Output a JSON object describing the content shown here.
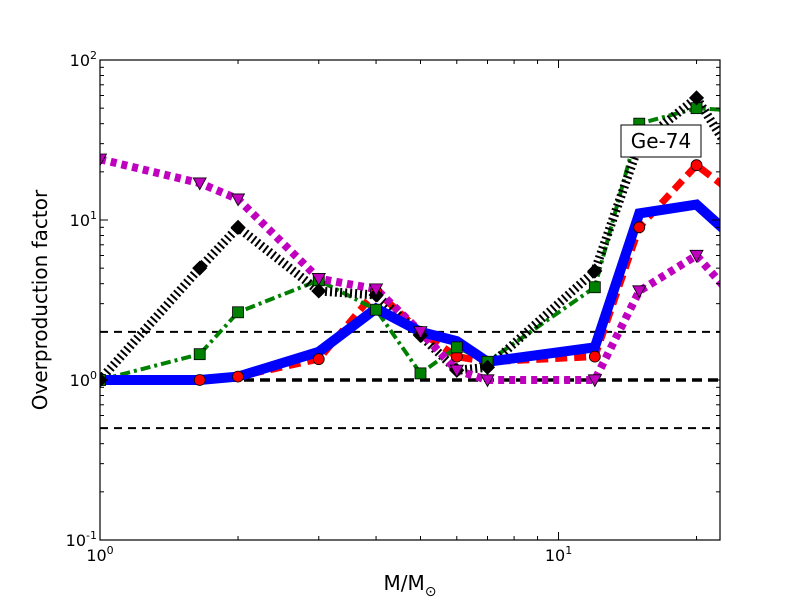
{
  "chart_data": {
    "type": "line",
    "xscale": "log",
    "yscale": "log",
    "xlim": [
      1,
      22.5
    ],
    "ylim": [
      0.1,
      100
    ],
    "xlabel": "M/M",
    "xlabel_sub": "⊙",
    "ylabel": "Overproduction factor",
    "x_ticks": [
      {
        "value": 1,
        "base": "10",
        "exp": "0"
      },
      {
        "value": 10,
        "base": "10",
        "exp": "1"
      }
    ],
    "y_ticks": [
      {
        "value": 0.1,
        "base": "10",
        "exp": "-1"
      },
      {
        "value": 1,
        "base": "10",
        "exp": "0"
      },
      {
        "value": 10,
        "base": "10",
        "exp": "1"
      },
      {
        "value": 100,
        "base": "10",
        "exp": "2"
      }
    ],
    "annotation": "Ge-74",
    "reference_lines": [
      {
        "y": 2.0,
        "style": "thin-dashed"
      },
      {
        "y": 1.0,
        "style": "thick-dashed"
      },
      {
        "y": 0.5,
        "style": "thin-dashed"
      }
    ],
    "series": [
      {
        "x": [
          1.0,
          1.65,
          2.0,
          3.0,
          4.0,
          5.0,
          6.0,
          7.0,
          12.0,
          15.0,
          20.0,
          25.0
        ],
        "y": [
          1.0,
          1.0,
          1.05,
          1.35,
          3.6,
          2.0,
          1.4,
          1.3,
          1.4,
          9.0,
          22.0,
          13.5
        ],
        "color": "#ff0000",
        "marker": "circle",
        "dash": "12,7",
        "width": 7
      },
      {
        "x": [
          1.0,
          1.65,
          2.0,
          3.0,
          4.0,
          5.0,
          6.0,
          7.0,
          12.0,
          15.0,
          20.0,
          25.0
        ],
        "y": [
          1.0,
          1.45,
          2.65,
          4.2,
          2.75,
          1.1,
          1.6,
          1.3,
          3.8,
          40.0,
          50.0,
          48.0
        ],
        "color": "#008000",
        "marker": "square",
        "dash": "10,4,3,4",
        "width": 4
      },
      {
        "x": [
          1.0,
          1.65,
          2.0,
          3.0,
          4.0,
          5.0,
          6.0,
          7.0,
          12.0,
          15.0,
          20.0,
          25.0
        ],
        "y": [
          1.0,
          5.0,
          9.0,
          3.6,
          3.4,
          1.9,
          1.15,
          1.2,
          4.8,
          30.0,
          58.0,
          21.0
        ],
        "color": "#000000",
        "marker": "diamond",
        "dash": "2,3",
        "width": 9
      },
      {
        "x": [
          1.0,
          1.65,
          2.0,
          3.0,
          4.0,
          5.0,
          6.0,
          7.0,
          12.0,
          15.0,
          20.0,
          25.0
        ],
        "y": [
          24.0,
          17.0,
          13.5,
          4.3,
          3.7,
          2.0,
          1.15,
          1.0,
          1.0,
          3.6,
          6.0,
          2.9
        ],
        "color": "#bf00bf",
        "marker": "triangle-down",
        "dash": "6,5",
        "width": 8
      },
      {
        "x": [
          1.0,
          1.65,
          2.0,
          3.0,
          4.0,
          5.0,
          6.0,
          7.0,
          12.0,
          15.0,
          20.0,
          25.0
        ],
        "y": [
          1.0,
          1.0,
          1.05,
          1.5,
          2.8,
          2.0,
          1.75,
          1.3,
          1.6,
          11.0,
          12.5,
          7.0
        ],
        "color": "#0000ff",
        "marker": "none",
        "dash": "",
        "width": 10
      }
    ]
  }
}
